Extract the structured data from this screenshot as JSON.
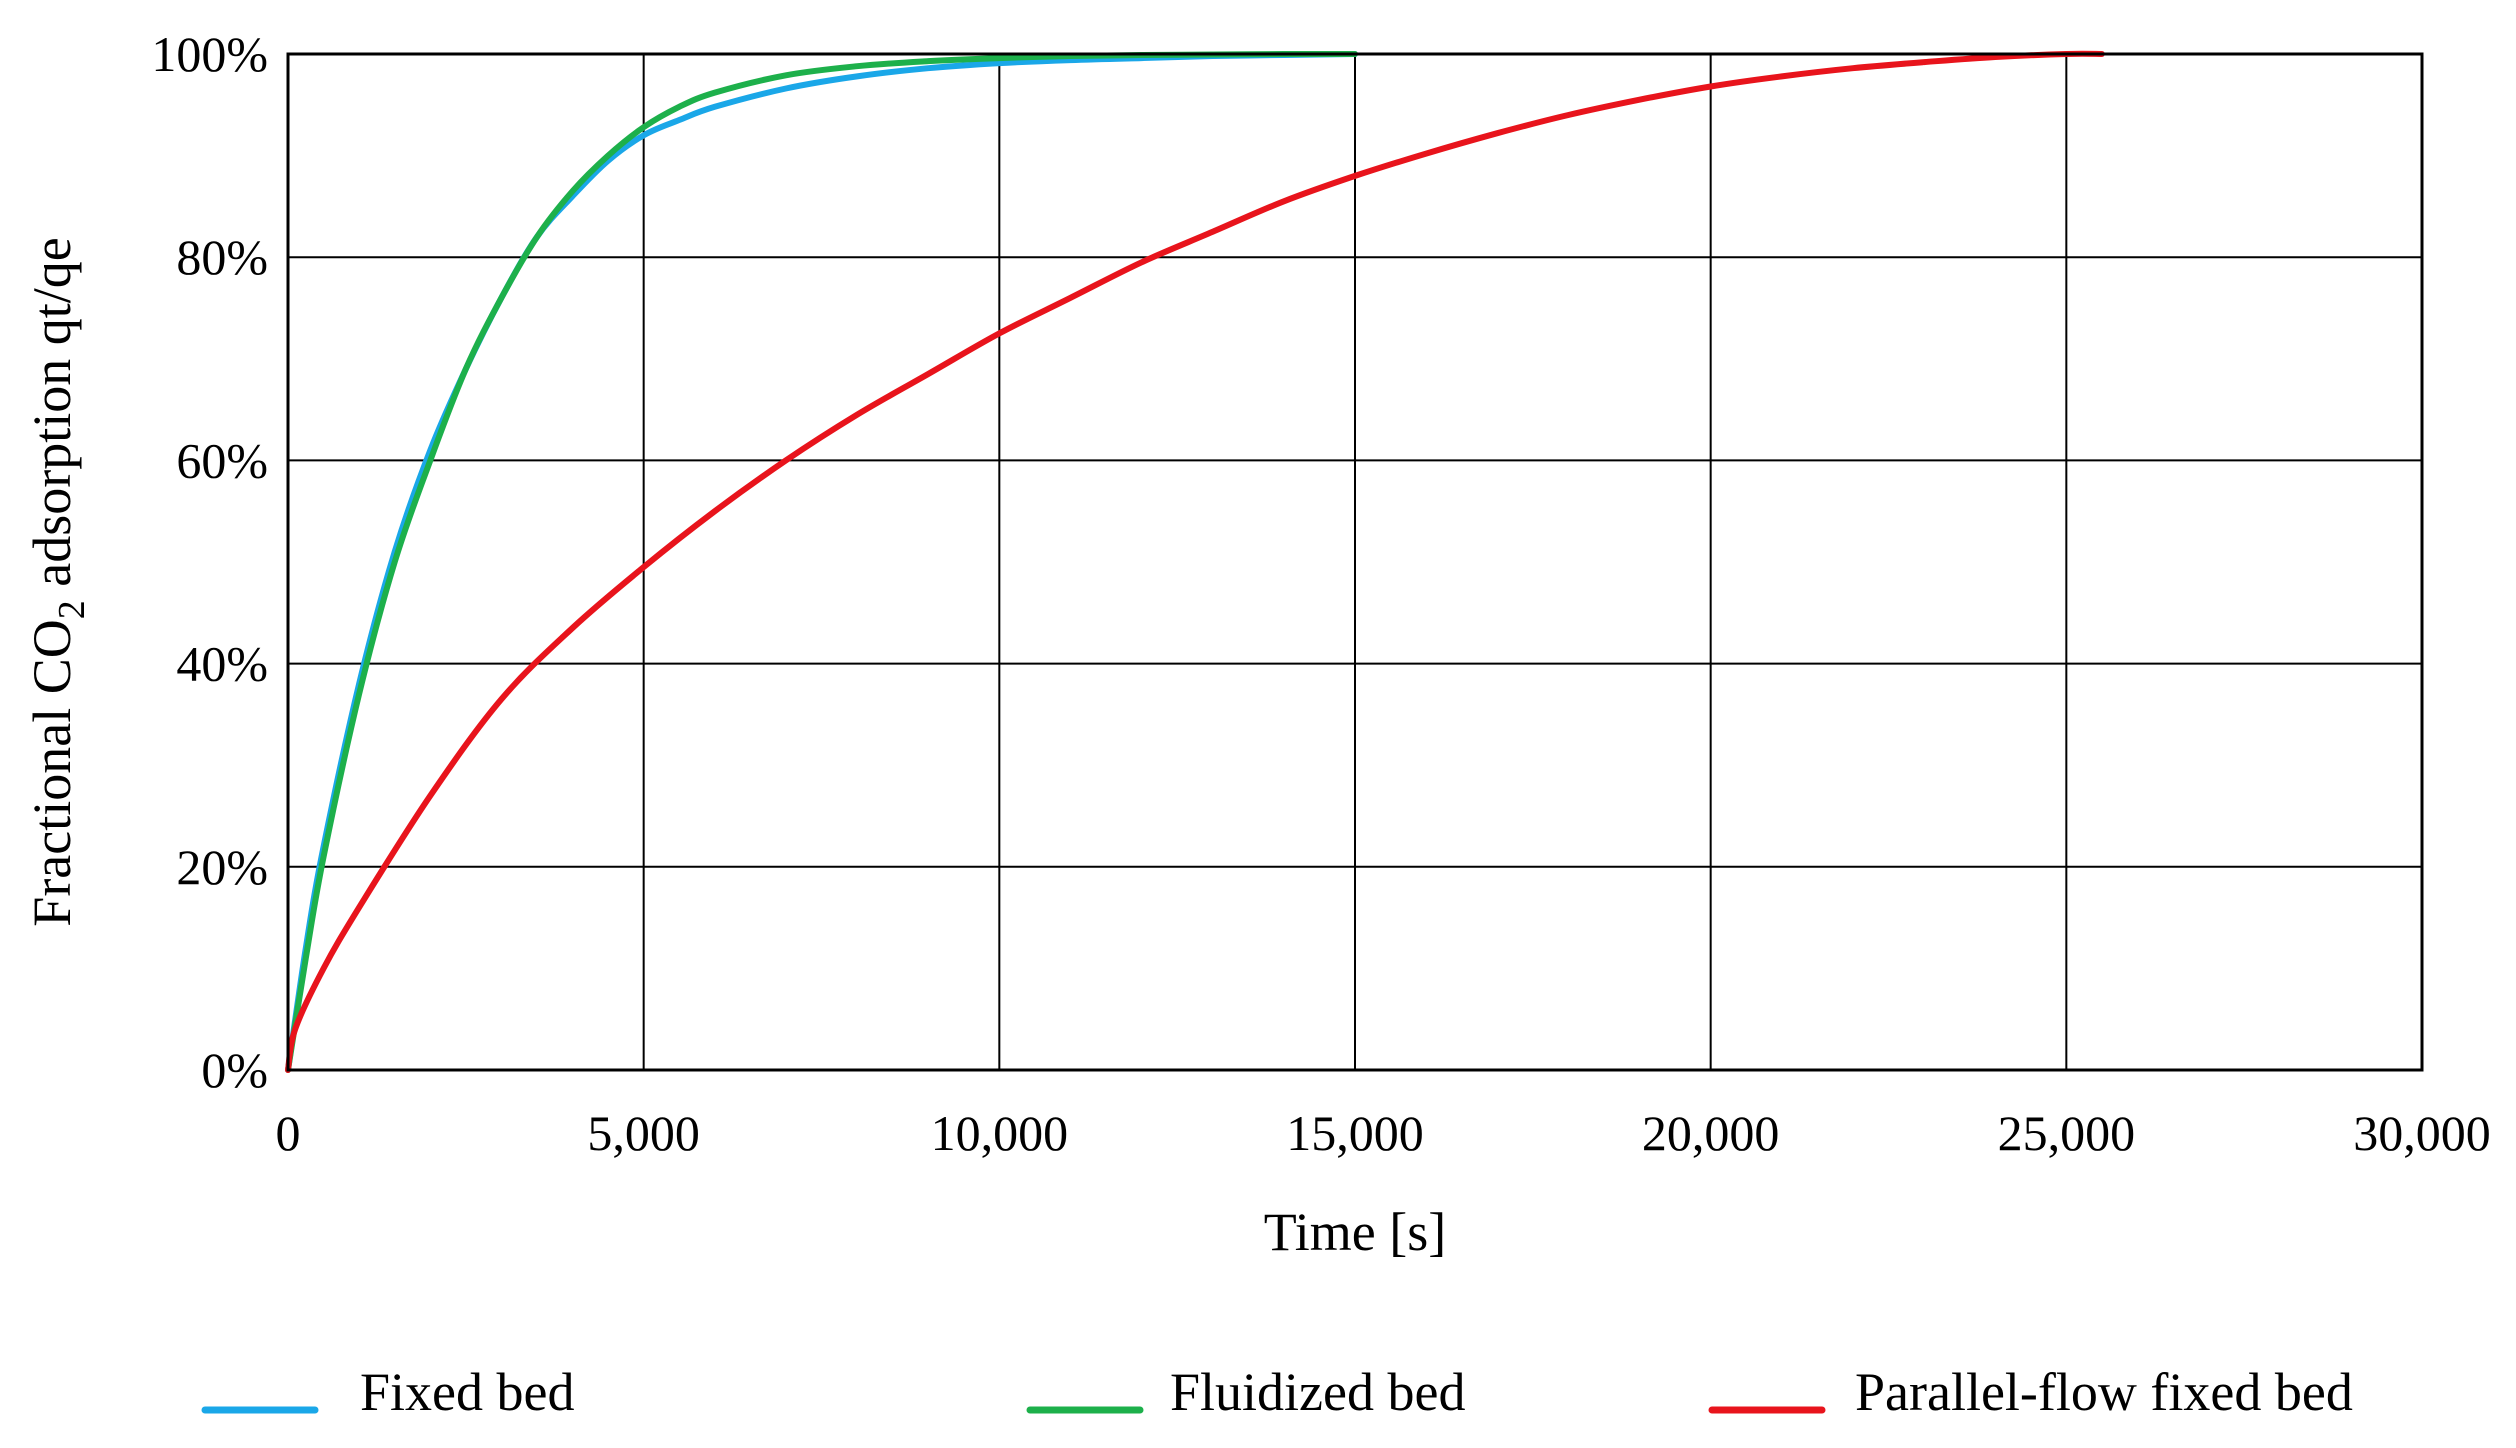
{
  "chart_data": {
    "type": "line",
    "title": "",
    "xlabel": "Time [s]",
    "ylabel_parts": [
      "Fractional CO",
      "2",
      " adsorption qt/qe"
    ],
    "xlim": [
      0,
      30000
    ],
    "ylim": [
      0,
      100
    ],
    "x_ticks": [
      0,
      5000,
      10000,
      15000,
      20000,
      25000,
      30000
    ],
    "x_tick_labels": [
      "0",
      "5,000",
      "10,000",
      "15,000",
      "20,000",
      "25,000",
      "30,000"
    ],
    "y_ticks": [
      0,
      20,
      40,
      60,
      80,
      100
    ],
    "y_tick_labels": [
      "0%",
      "20%",
      "40%",
      "60%",
      "80%",
      "100%"
    ],
    "grid": true,
    "legend_position": "bottom",
    "series": [
      {
        "name": "Fixed bed",
        "color": "#1AA7E8",
        "x": [
          0,
          250,
          500,
          1000,
          1500,
          2000,
          2500,
          3000,
          3500,
          4000,
          4500,
          5000,
          5500,
          6000,
          7000,
          8000,
          9000,
          10000,
          11000,
          12000,
          13000,
          14000,
          15000
        ],
        "y": [
          0,
          12,
          22,
          38,
          51,
          61,
          69,
          76,
          82,
          86,
          89.5,
          92,
          93.5,
          94.8,
          96.6,
          97.8,
          98.6,
          99.1,
          99.4,
          99.6,
          99.8,
          99.9,
          100
        ]
      },
      {
        "name": "Fluidized bed",
        "color": "#1DB04B",
        "x": [
          0,
          250,
          500,
          1000,
          1500,
          2000,
          2500,
          3000,
          3500,
          4000,
          4500,
          5000,
          5500,
          6000,
          7000,
          8000,
          9000,
          10000,
          11000,
          12000,
          13000,
          14000,
          15000
        ],
        "y": [
          0,
          11,
          21,
          37,
          50,
          60,
          69,
          76,
          82,
          86.5,
          90,
          92.8,
          94.8,
          96.2,
          97.9,
          98.8,
          99.3,
          99.6,
          99.8,
          99.9,
          99.95,
          100,
          100
        ]
      },
      {
        "name": "Parallel-flow fixed bed",
        "color": "#E8141C",
        "x": [
          0,
          100,
          500,
          1000,
          2000,
          3000,
          4000,
          5000,
          6000,
          7000,
          8000,
          9000,
          10000,
          11000,
          12000,
          13000,
          14000,
          15000,
          16000,
          17000,
          18000,
          19000,
          20000,
          21000,
          22000,
          23000,
          24000,
          25000,
          25500
        ],
        "y": [
          0,
          4,
          10,
          16,
          27,
          36.5,
          43.5,
          49.5,
          55,
          60,
          64.5,
          68.5,
          72.5,
          76,
          79.5,
          82.5,
          85.5,
          88,
          90.2,
          92.2,
          94,
          95.5,
          96.8,
          97.8,
          98.6,
          99.2,
          99.7,
          100,
          100
        ]
      }
    ]
  }
}
